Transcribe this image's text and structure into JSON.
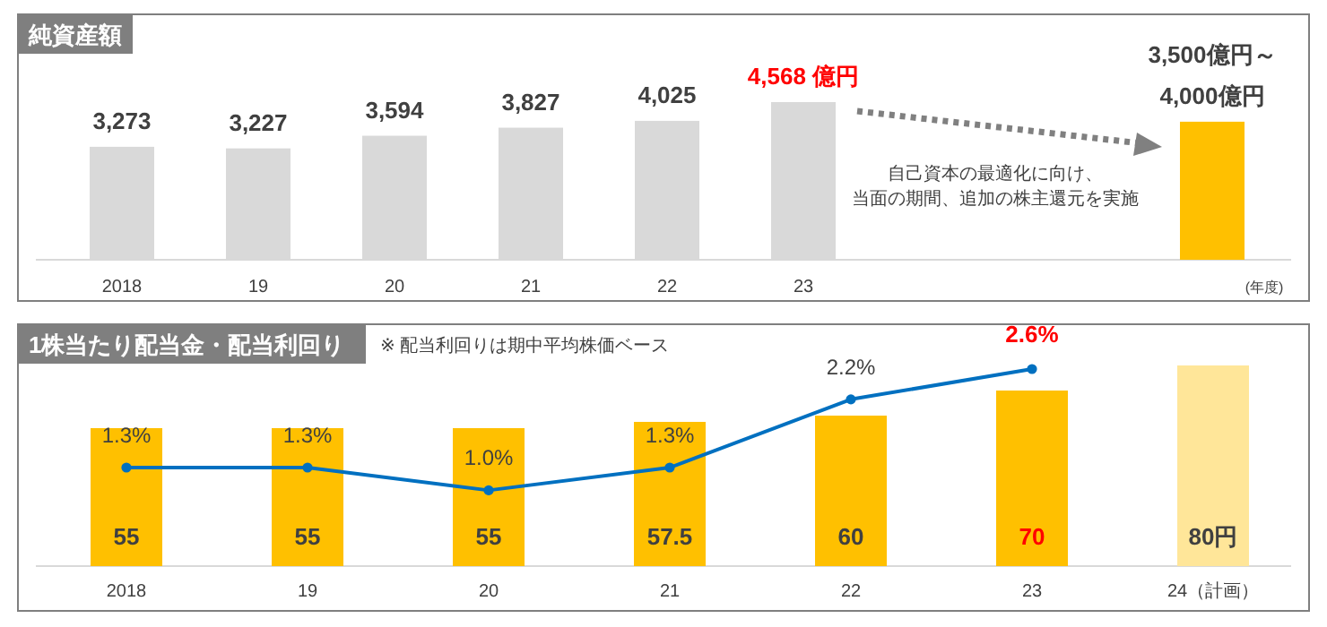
{
  "chart_data": [
    {
      "type": "bar",
      "title": "純資産額",
      "xlabel": "(年度)",
      "categories": [
        "2018",
        "19",
        "20",
        "21",
        "22",
        "23",
        null,
        null,
        null
      ],
      "series": [
        {
          "type": "bar",
          "values": [
            3273,
            3227,
            3594,
            3827,
            4025,
            4568,
            null,
            null,
            4000
          ],
          "colors": [
            "#d9d9d9",
            "#d9d9d9",
            "#d9d9d9",
            "#d9d9d9",
            "#d9d9d9",
            "#d9d9d9",
            null,
            null,
            "#ffc000"
          ],
          "value_labels": [
            "3,273",
            "3,227",
            "3,594",
            "3,827",
            "4,025",
            "4,568 億円",
            null,
            null,
            "3,500億円～\n4,000億円"
          ]
        }
      ],
      "annotations": [
        "自己資本の最適化に向け、",
        "当面の期間、追加の株主還元を実施"
      ]
    },
    {
      "type": "bar",
      "title": "1株当たり配当金・配当利回り",
      "subtitle": "※ 配当利回りは期中平均株価ベース",
      "categories": [
        "2018",
        "19",
        "20",
        "21",
        "22",
        "23",
        "24（計画）"
      ],
      "series": [
        {
          "type": "bar",
          "values": [
            55,
            55,
            55,
            57.5,
            60,
            70,
            80
          ],
          "colors": [
            "#ffc000",
            "#ffc000",
            "#ffc000",
            "#ffc000",
            "#ffc000",
            "#ffc000",
            "#ffe699"
          ],
          "value_labels": [
            "55",
            "55",
            "55",
            "57.5",
            "60",
            "70",
            "80円"
          ]
        },
        {
          "type": "line",
          "axis": "y2",
          "color": "#0070c0",
          "marker": "circle",
          "values": [
            1.3,
            1.3,
            1.0,
            1.3,
            2.2,
            2.6,
            null
          ],
          "value_labels": [
            "1.3%",
            "1.3%",
            "1.0%",
            "1.3%",
            "2.2%",
            "2.6%",
            null
          ]
        }
      ]
    }
  ]
}
